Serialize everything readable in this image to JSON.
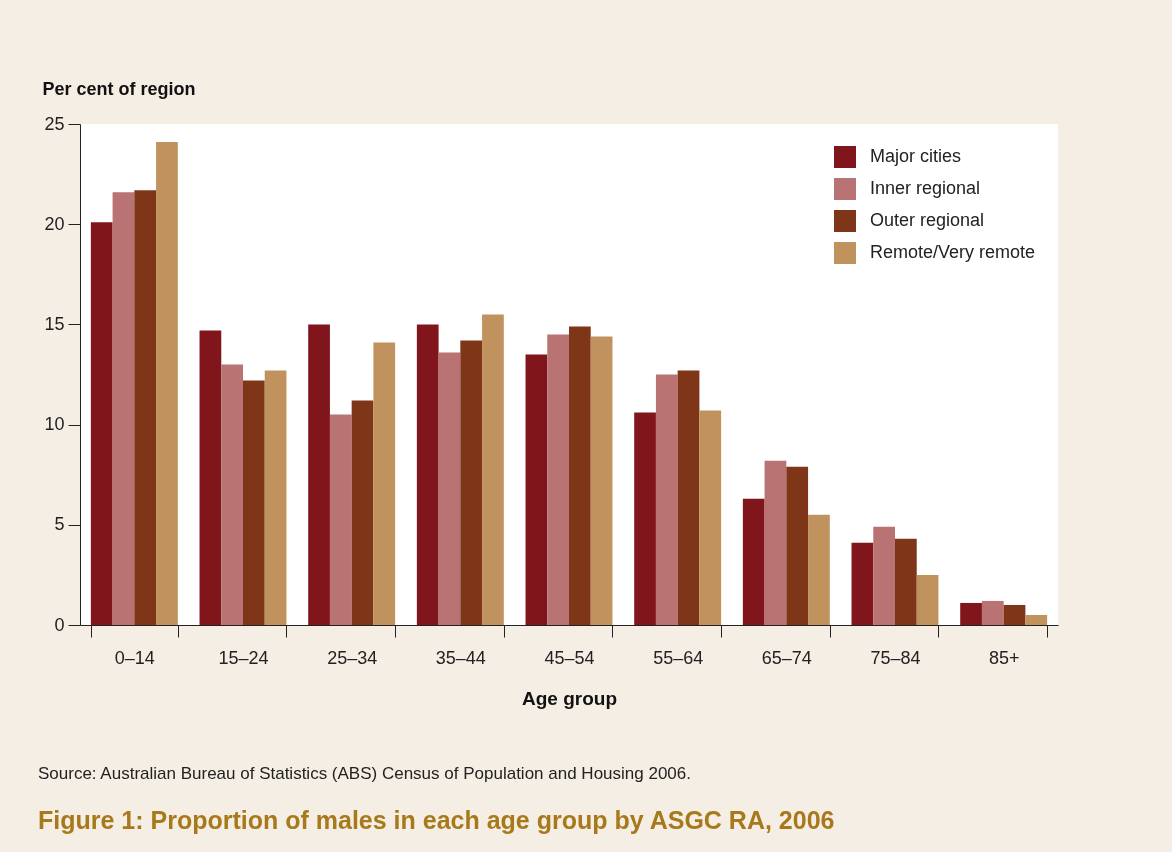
{
  "chart_data": {
    "type": "bar",
    "title": "Figure 1: Proportion of males in each age group by ASGC RA, 2006",
    "xlabel": "Age group",
    "ylabel": "Per cent of region",
    "annotations": [
      "Source: Australian Bureau of Statistics (ABS) Census of Population and Housing 2006."
    ],
    "categories": [
      "0–14",
      "15–24",
      "25–34",
      "35–44",
      "45–54",
      "55–64",
      "65–74",
      "75–84",
      "85+"
    ],
    "series": [
      {
        "name": "Major cities",
        "color": "#80151c",
        "values": [
          20.1,
          14.7,
          15.0,
          15.0,
          13.5,
          10.6,
          6.3,
          4.1,
          1.1
        ]
      },
      {
        "name": "Inner regional",
        "color": "#b87372",
        "values": [
          21.6,
          13.0,
          10.5,
          13.6,
          14.5,
          12.5,
          8.2,
          4.9,
          1.2
        ]
      },
      {
        "name": "Outer regional",
        "color": "#7f3618",
        "values": [
          21.7,
          12.2,
          11.2,
          14.2,
          14.9,
          12.7,
          7.9,
          4.3,
          1.0
        ]
      },
      {
        "name": "Remote/Very remote",
        "color": "#c0925d",
        "values": [
          24.1,
          12.7,
          14.1,
          15.5,
          14.4,
          10.7,
          5.5,
          2.5,
          0.5
        ]
      }
    ],
    "ylim": [
      0,
      25
    ],
    "yticks": [
      0,
      5,
      10,
      15,
      20,
      25
    ],
    "legend": "top right"
  }
}
